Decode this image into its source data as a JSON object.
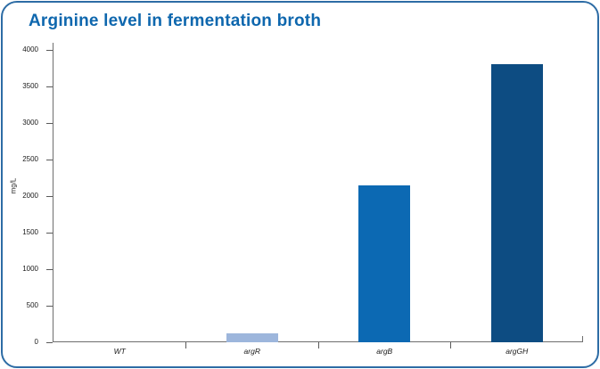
{
  "card": {
    "title": "Arginine level in fermentation broth"
  },
  "chart_data": {
    "type": "bar",
    "title": "Arginine level in fermentation broth",
    "categories": [
      "WT",
      "argR",
      "argB",
      "argGH"
    ],
    "values": [
      0,
      120,
      2150,
      3800
    ],
    "bar_colors": [
      "#9db6dc",
      "#9db6dc",
      "#0c69b3",
      "#0d4c82"
    ],
    "xlabel": "",
    "ylabel": "mg/L",
    "ylim": [
      0,
      4000
    ],
    "yticks": [
      0,
      500,
      1000,
      1500,
      2000,
      2500,
      3000,
      3500,
      4000
    ],
    "grid": false,
    "legend": "none"
  },
  "style_colors": {
    "title": "#0e67ae",
    "card_border": "#2d6ca5",
    "axis_line": "#6e6e6e",
    "tick_mark": "#5a5a5a",
    "tick_label": "#1a1a1a"
  }
}
